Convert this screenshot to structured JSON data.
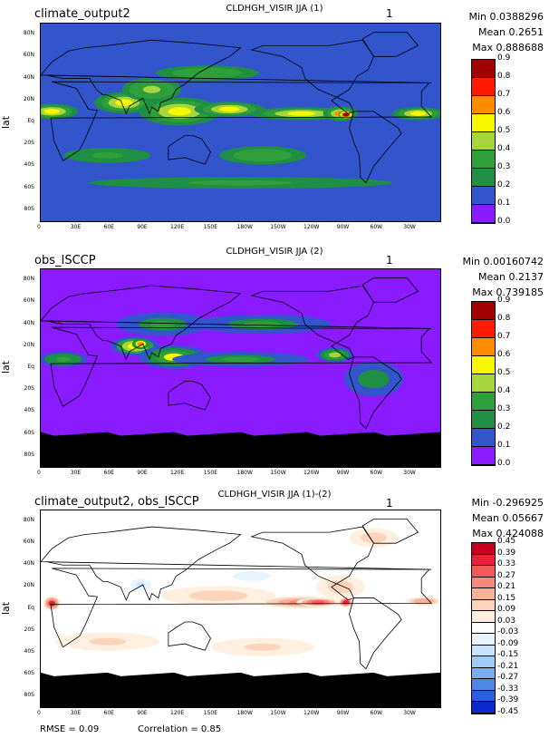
{
  "panels": [
    {
      "case_name": "climate_output2",
      "title": "CLDHGH_VISIR JJA (1)",
      "unit": "1",
      "stats": {
        "min": "Min 0.0388296",
        "mean": "Mean 0.2651",
        "max": "Max 0.888688"
      },
      "ylabel": "lat",
      "colorbar": {
        "labels": [
          "0.9",
          "0.8",
          "0.7",
          "0.6",
          "0.5",
          "0.4",
          "0.3",
          "0.2",
          "0.1",
          "0.0"
        ],
        "colors": [
          "#a00000",
          "#ff1a00",
          "#ff8c00",
          "#f7f700",
          "#a6d63c",
          "#2e9f3a",
          "#1f8f43",
          "#3355cc",
          "#8a1aff"
        ]
      },
      "masked_south": false
    },
    {
      "case_name": "obs_ISCCP",
      "title": "CLDHGH_VISIR JJA (2)",
      "unit": "1",
      "stats": {
        "min": "Min 0.00160742",
        "mean": "Mean 0.2137",
        "max": "Max 0.739185"
      },
      "ylabel": "lat",
      "colorbar": {
        "labels": [
          "0.9",
          "0.8",
          "0.7",
          "0.6",
          "0.5",
          "0.4",
          "0.3",
          "0.2",
          "0.1",
          "0.0"
        ],
        "colors": [
          "#a00000",
          "#ff1a00",
          "#ff8c00",
          "#f7f700",
          "#a6d63c",
          "#2e9f3a",
          "#1f8f43",
          "#3355cc",
          "#8a1aff"
        ]
      },
      "masked_south": true
    },
    {
      "case_name": "climate_output2, obs_ISCCP",
      "title": "CLDHGH_VISIR JJA (1)-(2)",
      "unit": "1",
      "stats": {
        "min": "Min -0.296925",
        "mean": "Mean 0.05667",
        "max": "Max 0.424088"
      },
      "ylabel": "lat",
      "colorbar": {
        "labels": [
          "0.45",
          "0.39",
          "0.33",
          "0.27",
          "0.21",
          "0.15",
          "0.09",
          "0.03",
          "-0.03",
          "-0.09",
          "-0.15",
          "-0.21",
          "-0.27",
          "-0.33",
          "-0.39",
          "-0.45"
        ],
        "colors": [
          "#c8001e",
          "#e8203a",
          "#f25a5a",
          "#f68a7a",
          "#f9b29a",
          "#fcd4bc",
          "#fff0e0",
          "#ffffff",
          "#e8f4ff",
          "#c8e4ff",
          "#a0ccf8",
          "#78aef0",
          "#5088e8",
          "#2c5ee0",
          "#0a2ad0"
        ]
      },
      "masked_south": true
    }
  ],
  "axes": {
    "x_ticks": [
      "0",
      "30E",
      "60E",
      "90E",
      "120E",
      "150E",
      "180W",
      "150W",
      "120W",
      "90W",
      "60W",
      "30W"
    ],
    "y_ticks": [
      "80N",
      "60N",
      "40N",
      "20N",
      "Eq",
      "20S",
      "40S",
      "60S",
      "80S"
    ]
  },
  "footer": {
    "rmse": "RMSE = 0.09",
    "correlation": "Correlation = 0.85"
  },
  "chart_data": [
    {
      "type": "heatmap",
      "title": "CLDHGH_VISIR JJA (1)",
      "subtitle": "climate_output2",
      "ylabel": "lat",
      "xlim": [
        0,
        360
      ],
      "ylim": [
        -90,
        90
      ],
      "color_levels": [
        0.0,
        0.1,
        0.2,
        0.3,
        0.4,
        0.5,
        0.6,
        0.7,
        0.8,
        0.9
      ],
      "blobs": [
        {
          "lon": 10,
          "lat": 10,
          "value": 0.55,
          "rlon": 22,
          "rlat": 6
        },
        {
          "lon": 75,
          "lat": 18,
          "value": 0.55,
          "rlon": 25,
          "rlat": 9
        },
        {
          "lon": 125,
          "lat": 10,
          "value": 0.55,
          "rlon": 35,
          "rlat": 12
        },
        {
          "lon": 170,
          "lat": 12,
          "value": 0.5,
          "rlon": 30,
          "rlat": 6
        },
        {
          "lon": 235,
          "lat": 8,
          "value": 0.5,
          "rlon": 45,
          "rlat": 5
        },
        {
          "lon": 270,
          "lat": 8,
          "value": 0.6,
          "rlon": 14,
          "rlat": 6
        },
        {
          "lon": 275,
          "lat": 7,
          "value": 0.85,
          "rlon": 5,
          "rlat": 3
        },
        {
          "lon": 340,
          "lat": 8,
          "value": 0.5,
          "rlon": 22,
          "rlat": 5
        },
        {
          "lon": 100,
          "lat": 30,
          "value": 0.45,
          "rlon": 25,
          "rlat": 10
        },
        {
          "lon": 150,
          "lat": 45,
          "value": 0.35,
          "rlon": 60,
          "rlat": 8
        },
        {
          "lon": 200,
          "lat": -30,
          "value": 0.35,
          "rlon": 50,
          "rlat": 10
        },
        {
          "lon": 60,
          "lat": -30,
          "value": 0.3,
          "rlon": 50,
          "rlat": 8
        },
        {
          "lon": 180,
          "lat": -55,
          "value": 0.3,
          "rlon": 180,
          "rlat": 6
        }
      ],
      "background_value": 0.15
    },
    {
      "type": "heatmap",
      "title": "CLDHGH_VISIR JJA (2)",
      "subtitle": "obs_ISCCP",
      "ylabel": "lat",
      "xlim": [
        0,
        360
      ],
      "ylim": [
        -90,
        90
      ],
      "color_levels": [
        0.0,
        0.1,
        0.2,
        0.3,
        0.4,
        0.5,
        0.6,
        0.7,
        0.8,
        0.9
      ],
      "blobs": [
        {
          "lon": 85,
          "lat": 20,
          "value": 0.55,
          "rlon": 20,
          "rlat": 8
        },
        {
          "lon": 90,
          "lat": 22,
          "value": 0.65,
          "rlon": 6,
          "rlat": 4
        },
        {
          "lon": 120,
          "lat": 10,
          "value": 0.5,
          "rlon": 30,
          "rlat": 10
        },
        {
          "lon": 20,
          "lat": 8,
          "value": 0.35,
          "rlon": 20,
          "rlat": 6
        },
        {
          "lon": 265,
          "lat": 12,
          "value": 0.45,
          "rlon": 15,
          "rlat": 6
        },
        {
          "lon": 180,
          "lat": 8,
          "value": 0.3,
          "rlon": 60,
          "rlat": 6
        },
        {
          "lon": 110,
          "lat": 40,
          "value": 0.3,
          "rlon": 40,
          "rlat": 10
        },
        {
          "lon": 200,
          "lat": 40,
          "value": 0.3,
          "rlon": 60,
          "rlat": 8
        },
        {
          "lon": 300,
          "lat": -10,
          "value": 0.25,
          "rlon": 25,
          "rlat": 15
        }
      ],
      "background_value": 0.08,
      "masked_below_lat": -60
    },
    {
      "type": "heatmap",
      "title": "CLDHGH_VISIR JJA (1)-(2)",
      "subtitle": "climate_output2, obs_ISCCP",
      "ylabel": "lat",
      "xlim": [
        0,
        360
      ],
      "ylim": [
        -90,
        90
      ],
      "color_levels": [
        -0.45,
        -0.39,
        -0.33,
        -0.27,
        -0.21,
        -0.15,
        -0.09,
        -0.03,
        0.03,
        0.09,
        0.15,
        0.21,
        0.27,
        0.33,
        0.39,
        0.45
      ],
      "blobs": [
        {
          "lon": 10,
          "lat": 5,
          "value": 0.33,
          "rlon": 6,
          "rlat": 6
        },
        {
          "lon": 235,
          "lat": 6,
          "value": 0.21,
          "rlon": 40,
          "rlat": 5
        },
        {
          "lon": 250,
          "lat": 6,
          "value": 0.3,
          "rlon": 18,
          "rlat": 3
        },
        {
          "lon": 275,
          "lat": 6,
          "value": 0.35,
          "rlon": 5,
          "rlat": 4
        },
        {
          "lon": 345,
          "lat": 7,
          "value": 0.2,
          "rlon": 15,
          "rlat": 3
        },
        {
          "lon": 160,
          "lat": 12,
          "value": 0.12,
          "rlon": 50,
          "rlat": 8
        },
        {
          "lon": 270,
          "lat": 20,
          "value": 0.12,
          "rlon": 20,
          "rlat": 10
        },
        {
          "lon": 60,
          "lat": -30,
          "value": 0.09,
          "rlon": 60,
          "rlat": 10
        },
        {
          "lon": 200,
          "lat": -35,
          "value": 0.1,
          "rlon": 60,
          "rlat": 10
        },
        {
          "lon": 300,
          "lat": 65,
          "value": 0.12,
          "rlon": 20,
          "rlat": 8
        },
        {
          "lon": 90,
          "lat": 22,
          "value": -0.1,
          "rlon": 10,
          "rlat": 6
        },
        {
          "lon": 190,
          "lat": 30,
          "value": -0.08,
          "rlon": 20,
          "rlat": 5
        }
      ],
      "background_value": 0.0,
      "masked_below_lat": -60
    }
  ]
}
